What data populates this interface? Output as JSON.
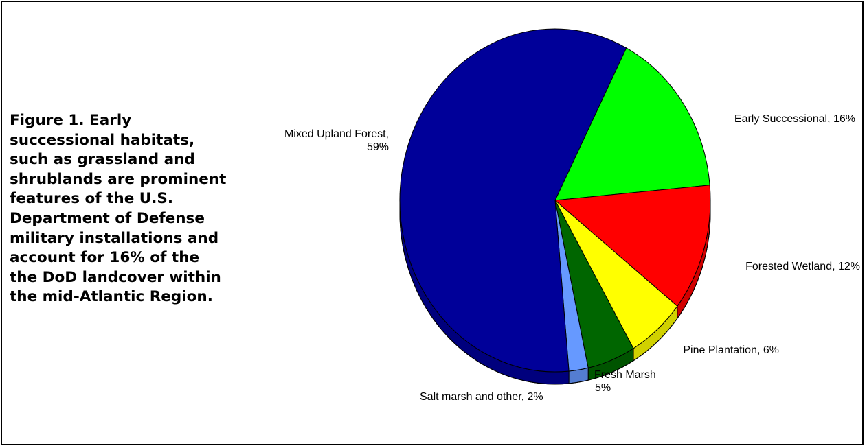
{
  "caption": "Figure 1.  Early\nsuccessional habitats,\nsuch as grassland and\nshrublands are prominent\nfeatures of the U.S.\nDepartment of Defense\nmilitary installations and\naccount for 16% of the\nthe DoD landcover within\nthe mid-Atlantic Region.",
  "chart_data": {
    "type": "pie",
    "style": "3d",
    "slices": [
      {
        "label": "Early Successional",
        "value": 16,
        "color": "#00ff00",
        "label_text": [
          "Early Successional, 16%"
        ]
      },
      {
        "label": "Forested Wetland",
        "value": 12,
        "color": "#ff0000",
        "label_text": [
          "Forested Wetland, 12%"
        ]
      },
      {
        "label": "Pine Plantation",
        "value": 6,
        "color": "#ffff00",
        "label_text": [
          "Pine Plantation, 6%"
        ]
      },
      {
        "label": "Fresh Marsh",
        "value": 5,
        "color": "#006600",
        "label_text": [
          "Fresh Marsh",
          "5%"
        ]
      },
      {
        "label": "Salt marsh and other",
        "value": 2,
        "color": "#6699ff",
        "label_text": [
          "Salt marsh and other, 2%"
        ]
      },
      {
        "label": "Mixed Upland Forest",
        "value": 59,
        "color": "#000099",
        "label_text": [
          "Mixed Upland Forest,",
          "59%"
        ]
      }
    ]
  }
}
